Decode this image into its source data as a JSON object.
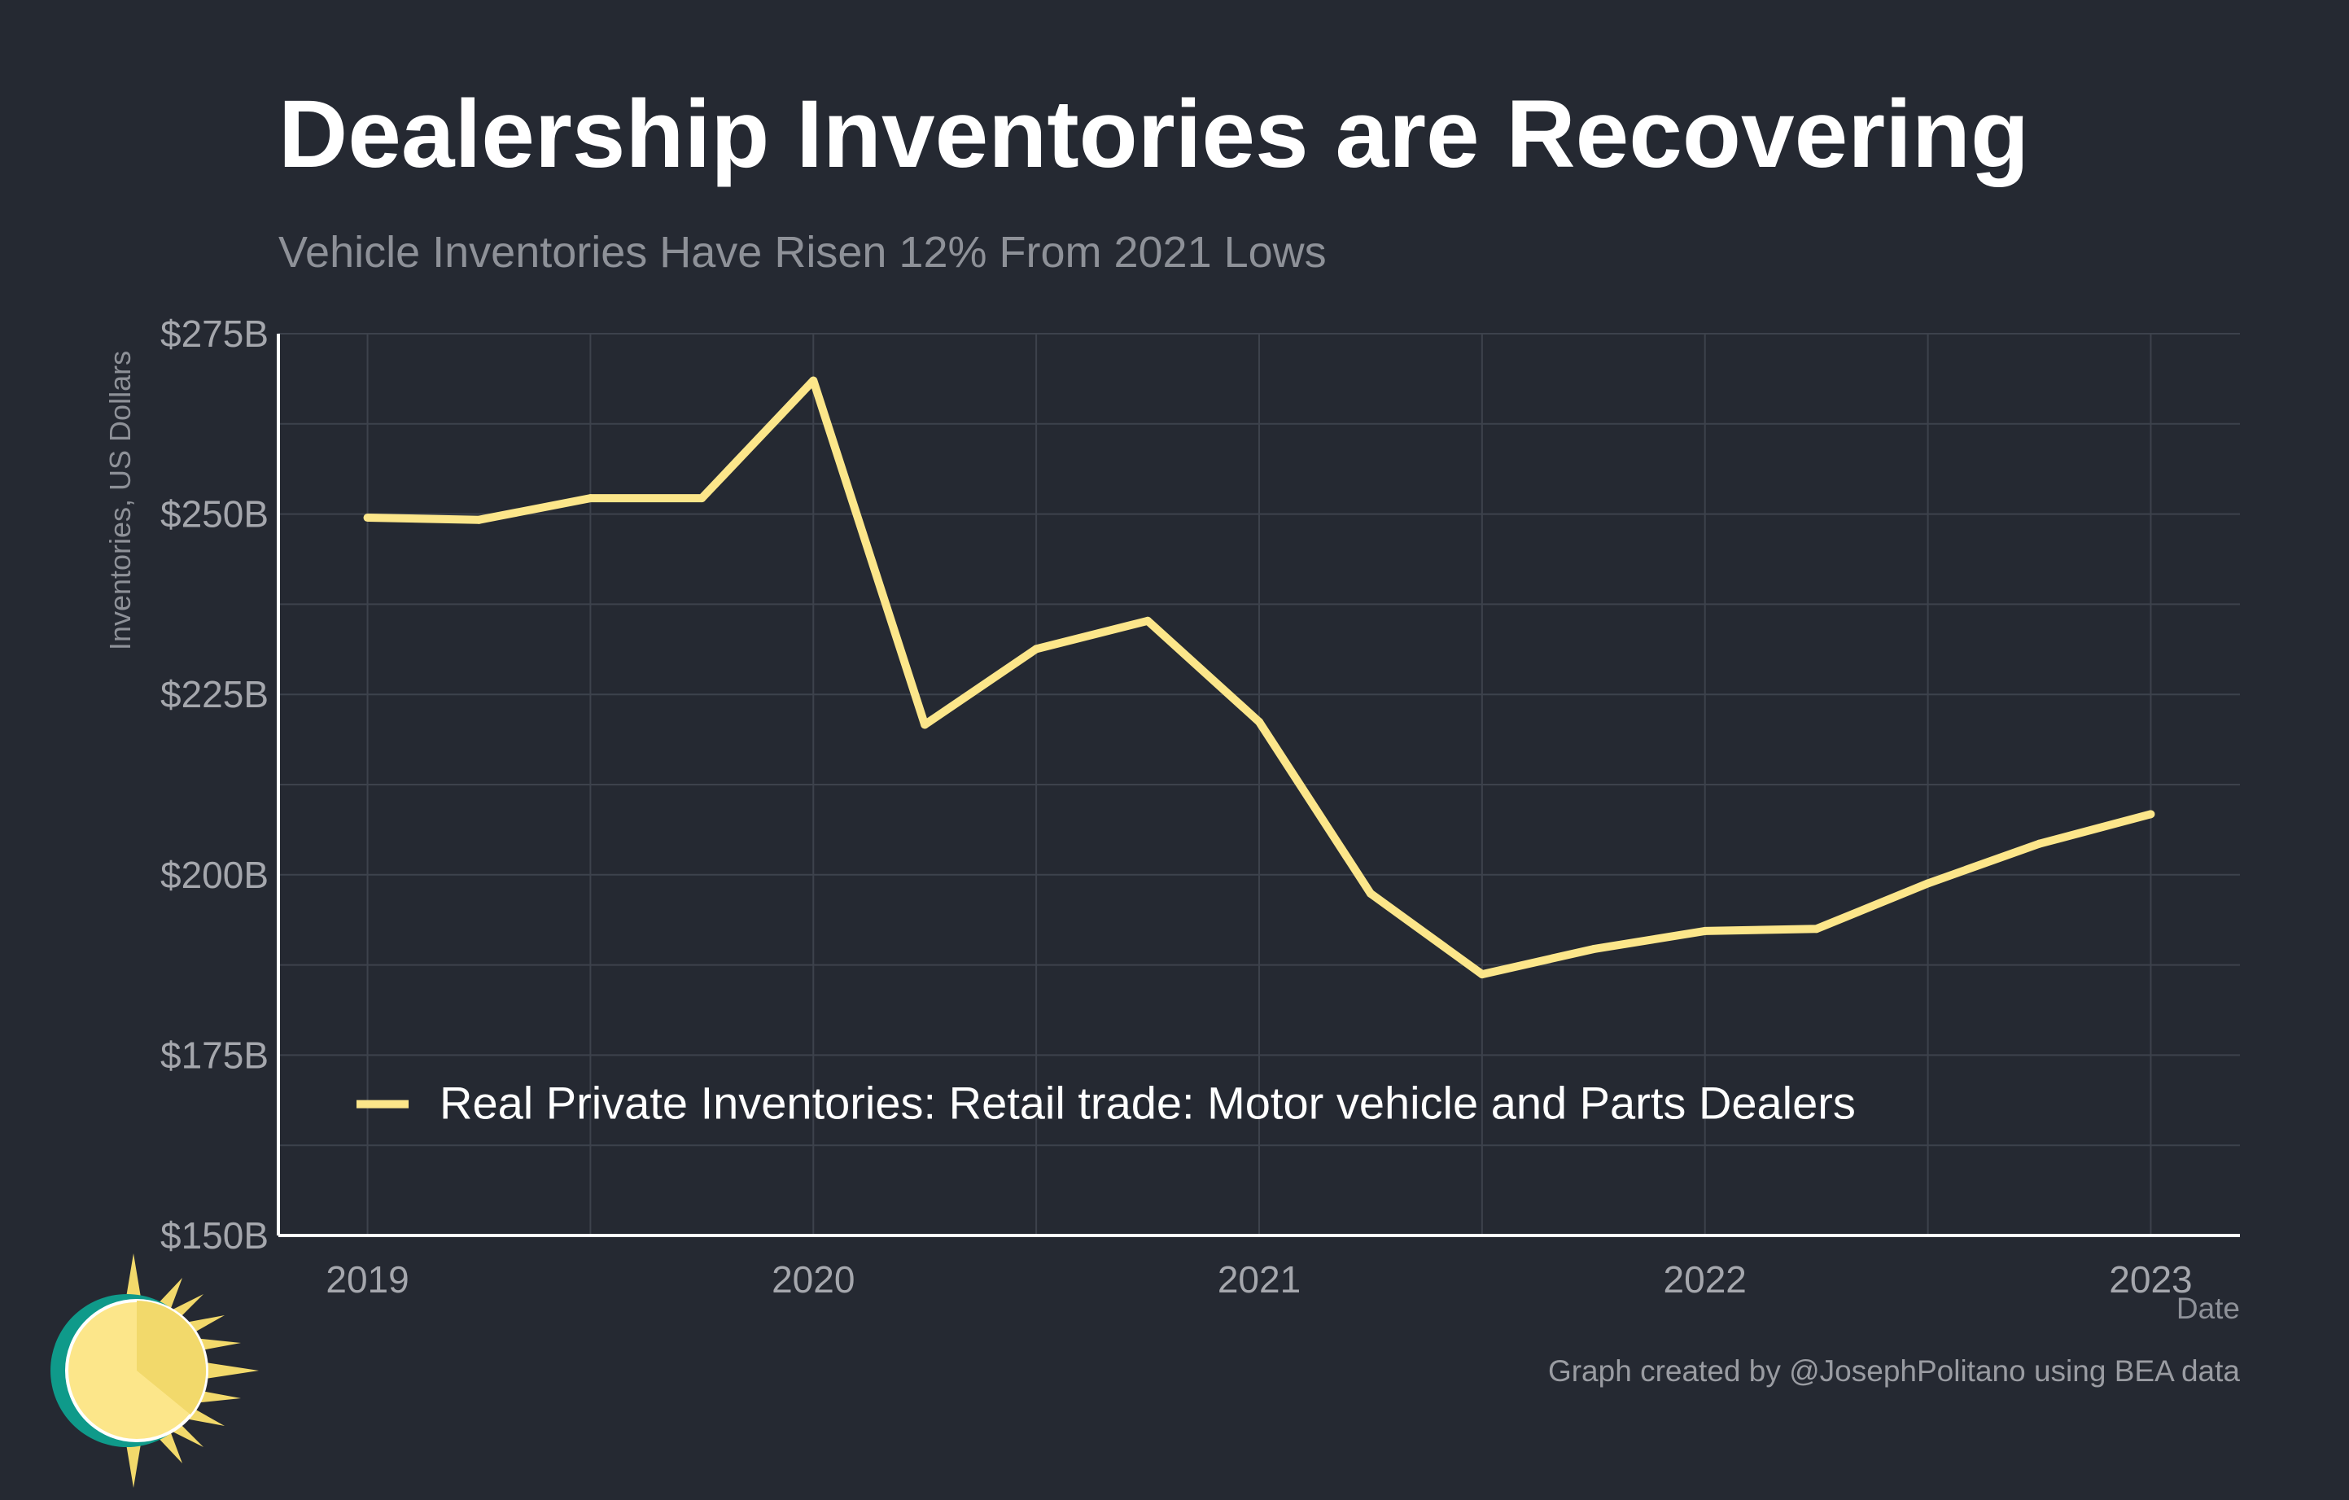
{
  "title": "Dealership Inventories are Recovering",
  "subtitle": "Vehicle Inventories Have Risen 12% From 2021 Lows",
  "caption": "Graph created by @JosephPolitano using BEA data",
  "colors": {
    "background": "#252932",
    "line": "#FCE68A",
    "grid": "#3d424c",
    "axis": "#ffffff",
    "tick_text": "#a5a7ad",
    "title": "#ffffff",
    "subtitle": "#8e9198"
  },
  "chart_data": {
    "type": "line",
    "title": "Dealership Inventories are Recovering",
    "subtitle": "Vehicle Inventories Have Risen 12% From 2021 Lows",
    "xlabel": "Date",
    "ylabel": "Inventories, US Dollars",
    "xlim": [
      2018.8,
      2023.2
    ],
    "ylim": [
      150,
      275
    ],
    "x_ticks": [
      2019,
      2020,
      2021,
      2022,
      2023
    ],
    "x_tick_labels": [
      "2019",
      "2020",
      "2021",
      "2022",
      "2023"
    ],
    "y_ticks": [
      150,
      175,
      200,
      225,
      250,
      275
    ],
    "y_tick_labels": [
      "$150B",
      "$175B",
      "$200B",
      "$225B",
      "$250B",
      "$275B"
    ],
    "grid": true,
    "legend_position": "bottom-left inside",
    "series": [
      {
        "name": "Real Private Inventories: Retail trade: Motor vehicle and Parts Dealers",
        "unit": "billions USD",
        "x": [
          2019.0,
          2019.25,
          2019.5,
          2019.75,
          2020.0,
          2020.25,
          2020.5,
          2020.75,
          2021.0,
          2021.25,
          2021.5,
          2021.75,
          2022.0,
          2022.25,
          2022.5,
          2022.75,
          2023.0
        ],
        "values": [
          249.5,
          249.2,
          252.2,
          252.2,
          268.5,
          220.8,
          231.3,
          235.2,
          221.2,
          197.4,
          186.2,
          189.7,
          192.2,
          192.5,
          198.8,
          204.3,
          208.4
        ]
      }
    ]
  }
}
